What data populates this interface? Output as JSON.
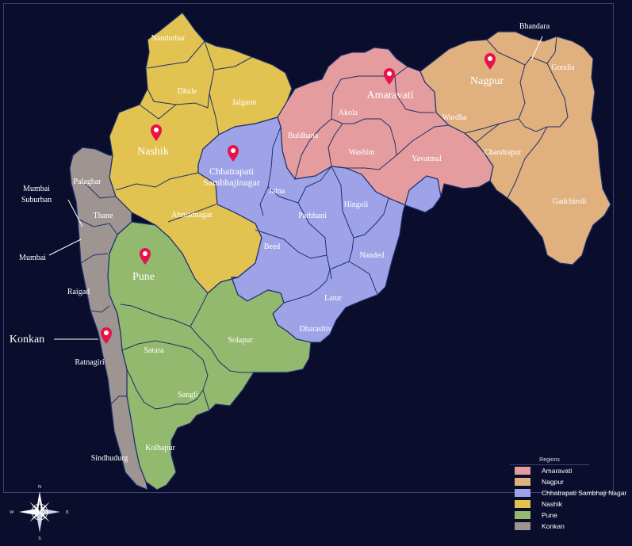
{
  "map": {
    "districts": [
      {
        "name": "Nandurbar",
        "region": "Nashik"
      },
      {
        "name": "Dhule",
        "region": "Nashik"
      },
      {
        "name": "Jalgaon",
        "region": "Nashik"
      },
      {
        "name": "Nashik",
        "region": "Nashik"
      },
      {
        "name": "Ahmadnagar",
        "region": "Nashik"
      },
      {
        "name": "Buldhana",
        "region": "Amaravati"
      },
      {
        "name": "Akola",
        "region": "Amaravati"
      },
      {
        "name": "Washim",
        "region": "Amaravati"
      },
      {
        "name": "Amaravati",
        "region": "Amaravati"
      },
      {
        "name": "Yavatmal",
        "region": "Amaravati"
      },
      {
        "name": "Bhandara",
        "region": "Nagpur"
      },
      {
        "name": "Gondia",
        "region": "Nagpur"
      },
      {
        "name": "Nagpur",
        "region": "Nagpur"
      },
      {
        "name": "Wardha",
        "region": "Nagpur"
      },
      {
        "name": "Chandrapur",
        "region": "Nagpur"
      },
      {
        "name": "Gadchiroli",
        "region": "Nagpur"
      },
      {
        "name": "Chhatrapati Sambhajinagar",
        "region": "Chhatrapati Sambhaji Nagar"
      },
      {
        "name": "Jalna",
        "region": "Chhatrapati Sambhaji Nagar"
      },
      {
        "name": "Parbhani",
        "region": "Chhatrapati Sambhaji Nagar"
      },
      {
        "name": "Hingoli",
        "region": "Chhatrapati Sambhaji Nagar"
      },
      {
        "name": "Beed",
        "region": "Chhatrapati Sambhaji Nagar"
      },
      {
        "name": "Nanded",
        "region": "Chhatrapati Sambhaji Nagar"
      },
      {
        "name": "Latur",
        "region": "Chhatrapati Sambhaji Nagar"
      },
      {
        "name": "Dharashiv",
        "region": "Chhatrapati Sambhaji Nagar"
      },
      {
        "name": "Pune",
        "region": "Pune"
      },
      {
        "name": "Solapur",
        "region": "Pune"
      },
      {
        "name": "Satara",
        "region": "Pune"
      },
      {
        "name": "Sangli",
        "region": "Pune"
      },
      {
        "name": "Kolhapur",
        "region": "Pune"
      },
      {
        "name": "Palaghar",
        "region": "Konkan"
      },
      {
        "name": "Thane",
        "region": "Konkan"
      },
      {
        "name": "Mumbai Suburban",
        "region": "Konkan"
      },
      {
        "name": "Mumbai",
        "region": "Konkan"
      },
      {
        "name": "Raigad",
        "region": "Konkan"
      },
      {
        "name": "Ratnagiri",
        "region": "Konkan"
      },
      {
        "name": "Sindhudurg",
        "region": "Konkan"
      }
    ],
    "labels": {
      "nandurbar": "Nandurbar",
      "dhule": "Dhule",
      "jalgaon": "Jalgaon",
      "nashik_dist": "Nashik",
      "ahmadnagar": "Ahmadnagar",
      "buldhana": "Buldhana",
      "akola": "Akola",
      "washim": "Washim",
      "amaravati_dist": "Amaravati",
      "yavatmal": "Yavatmal",
      "bhandara": "Bhandara",
      "gondia": "Gondia",
      "nagpur_dist": "Nagpur",
      "wardha": "Wardha",
      "chandrapur": "Chandrapur",
      "gadchiroli": "Gadchiroli",
      "sambhajinagar_line1": "Chhatrapati",
      "sambhajinagar_line2": "Sambhajinagar",
      "jalna": "Jalna",
      "parbhani": "Parbhani",
      "hingoli": "Hingoli",
      "beed": "Beed",
      "nanded": "Nanded",
      "latur": "Latur",
      "dharashiv": "Dharashiv",
      "pune_dist": "Pune",
      "solapur": "Solapur",
      "satara": "Satara",
      "sangli": "Sangli",
      "kolhapur": "Kolhapur",
      "palaghar": "Palaghar",
      "thane": "Thane",
      "mumbai_suburban_line1": "Mumbai",
      "mumbai_suburban_line2": "Suburban",
      "mumbai": "Mumbai",
      "raigad": "Raigad",
      "ratnagiri": "Ratnagiri",
      "sindhudurg": "Sindhudurg",
      "konkan": "Konkan"
    },
    "markers": [
      "Nashik",
      "Chhatrapati Sambhajinagar",
      "Amaravati",
      "Nagpur",
      "Pune",
      "Konkan"
    ]
  },
  "legend": {
    "title": "Regions",
    "items": [
      {
        "label": "Amaravati",
        "color": "#e59c9e"
      },
      {
        "label": "Nagpur",
        "color": "#e0b07e"
      },
      {
        "label": "Chhatrapati Sambhaji Nagar",
        "color": "#9ea3e8"
      },
      {
        "label": "Nashik",
        "color": "#e2c250"
      },
      {
        "label": "Pune",
        "color": "#93b96e"
      },
      {
        "label": "Konkan",
        "color": "#9e9592"
      }
    ]
  },
  "compass": {
    "north": "N",
    "south": "S",
    "east": "E",
    "west": "W"
  },
  "colors": {
    "background": "#0a0d2b",
    "border": "#1d2f6e",
    "marker": "#e8134a"
  }
}
